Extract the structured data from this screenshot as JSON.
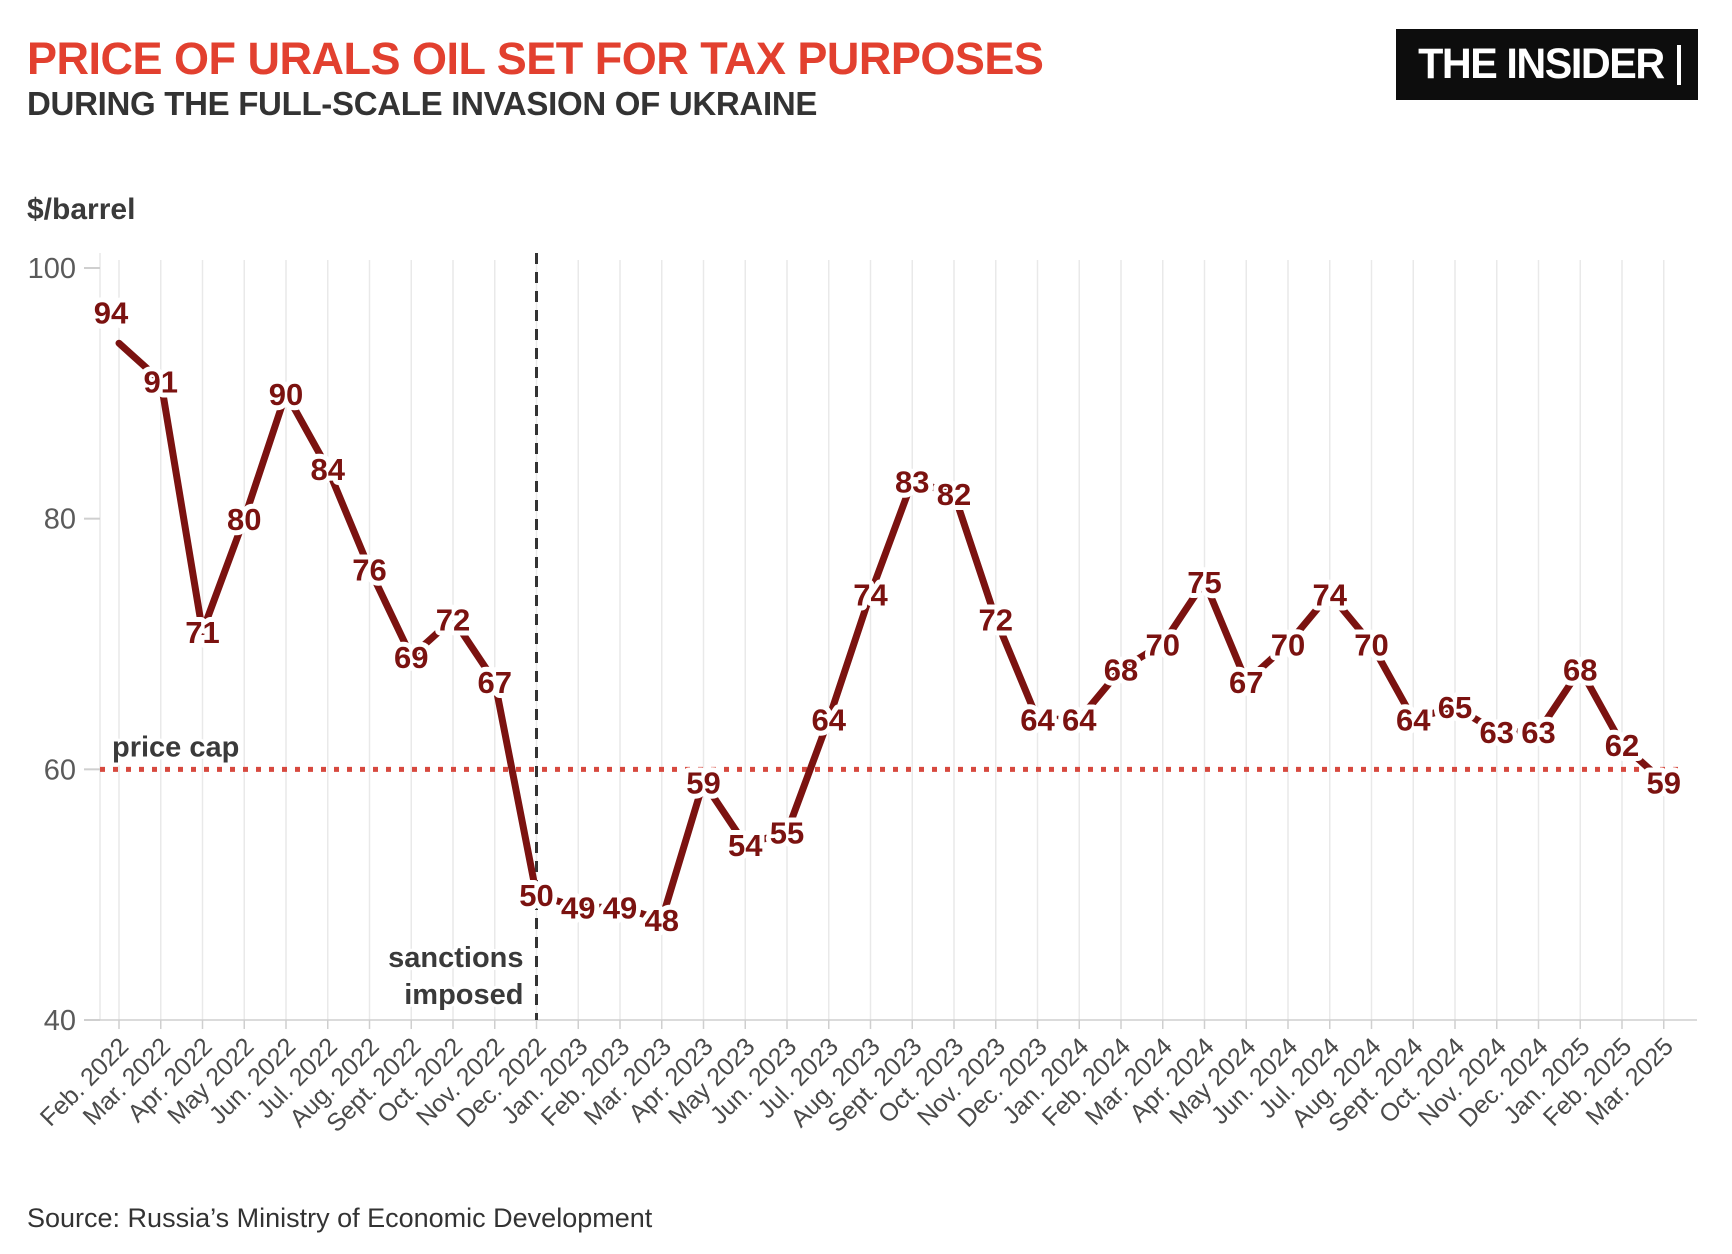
{
  "header": {
    "title": "PRICE OF URALS OIL SET FOR TAX PURPOSES",
    "subtitle": "DURING THE FULL-SCALE INVASION OF UKRAINE",
    "logo_text": "THE INSIDER"
  },
  "chart_data": {
    "type": "line",
    "title": "Price of Urals oil set for tax purposes during the full-scale invasion of Ukraine",
    "ylabel": "$/barrel",
    "xlabel": "",
    "x": [
      "Feb. 2022",
      "Mar. 2022",
      "Apr. 2022",
      "May 2022",
      "Jun. 2022",
      "Jul. 2022",
      "Aug. 2022",
      "Sept. 2022",
      "Oct. 2022",
      "Nov. 2022",
      "Dec. 2022",
      "Jan. 2023",
      "Feb. 2023",
      "Mar. 2023",
      "Apr. 2023",
      "May 2023",
      "Jun. 2023",
      "Jul. 2023",
      "Aug. 2023",
      "Sept. 2023",
      "Oct. 2023",
      "Nov. 2023",
      "Dec. 2023",
      "Jan. 2024",
      "Feb. 2024",
      "Mar. 2024",
      "Apr. 2024",
      "May 2024",
      "Jun. 2024",
      "Jul. 2024",
      "Aug. 2024",
      "Sept. 2024",
      "Oct. 2024",
      "Nov. 2024",
      "Dec. 2024",
      "Jan. 2025",
      "Feb. 2025",
      "Mar. 2025"
    ],
    "series": [
      {
        "name": "Urals oil price set for tax purposes",
        "values": [
          94,
          91,
          71,
          80,
          90,
          84,
          76,
          69,
          72,
          67,
          50,
          49,
          49,
          48,
          59,
          54,
          55,
          64,
          74,
          83,
          82,
          72,
          64,
          64,
          68,
          70,
          75,
          67,
          70,
          74,
          70,
          64,
          65,
          63,
          63,
          68,
          62,
          59
        ]
      }
    ],
    "ylim": [
      40,
      100
    ],
    "yticks": [
      40,
      60,
      80,
      100
    ],
    "grid": "vertical",
    "legend": "none",
    "annotations": {
      "price_cap": {
        "label": "price cap",
        "value": 60
      },
      "sanctions": {
        "label_line1": "sanctions",
        "label_line2": "imposed",
        "x": "Dec. 2022"
      }
    },
    "colors": {
      "line": "#7b1210",
      "value_labels": "#7b1210",
      "price_cap_line": "#d7493f",
      "sanctions_line": "#333333",
      "grid": "#e9e9e9",
      "axis": "#cfcfcf",
      "tick_text": "#5a5a5a",
      "month_text": "#4a4a4a",
      "annotation_text": "#3a3a3a",
      "title_accent": "#e2402f"
    }
  },
  "source": "Source: Russia’s Ministry of Economic Development"
}
